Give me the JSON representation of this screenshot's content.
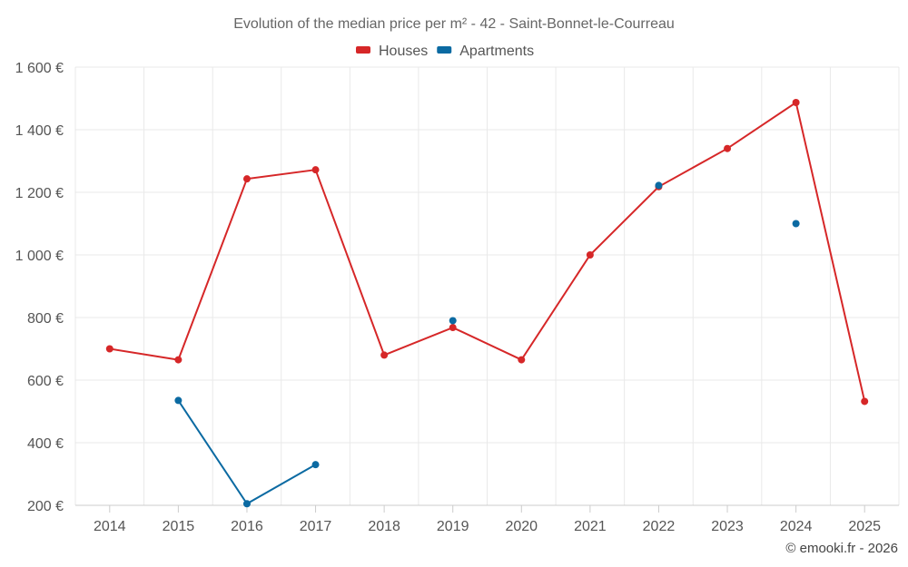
{
  "chart_data": {
    "type": "line",
    "title": "Evolution of the median price per m² - 42 - Saint-Bonnet-le-Courreau",
    "categories": [
      "2014",
      "2015",
      "2016",
      "2017",
      "2018",
      "2019",
      "2020",
      "2021",
      "2022",
      "2023",
      "2024",
      "2025"
    ],
    "ylim": [
      200,
      1600
    ],
    "yticks": [
      200,
      400,
      600,
      800,
      1000,
      1200,
      1400,
      1600
    ],
    "ytick_labels": [
      "200 €",
      "400 €",
      "600 €",
      "800 €",
      "1 000 €",
      "1 200 €",
      "1 400 €",
      "1 600 €"
    ],
    "grid": true,
    "legend_position": "top-center",
    "series": [
      {
        "name": "Houses",
        "color": "#d62728",
        "values": [
          700,
          665,
          1243,
          1272,
          680,
          768,
          665,
          1000,
          1218,
          1340,
          1487,
          532
        ]
      },
      {
        "name": "Apartments",
        "color": "#0b6aa2",
        "values": [
          null,
          535,
          205,
          330,
          null,
          790,
          null,
          null,
          1222,
          null,
          1100,
          null
        ]
      }
    ],
    "credit": "© emooki.fr - 2026"
  }
}
